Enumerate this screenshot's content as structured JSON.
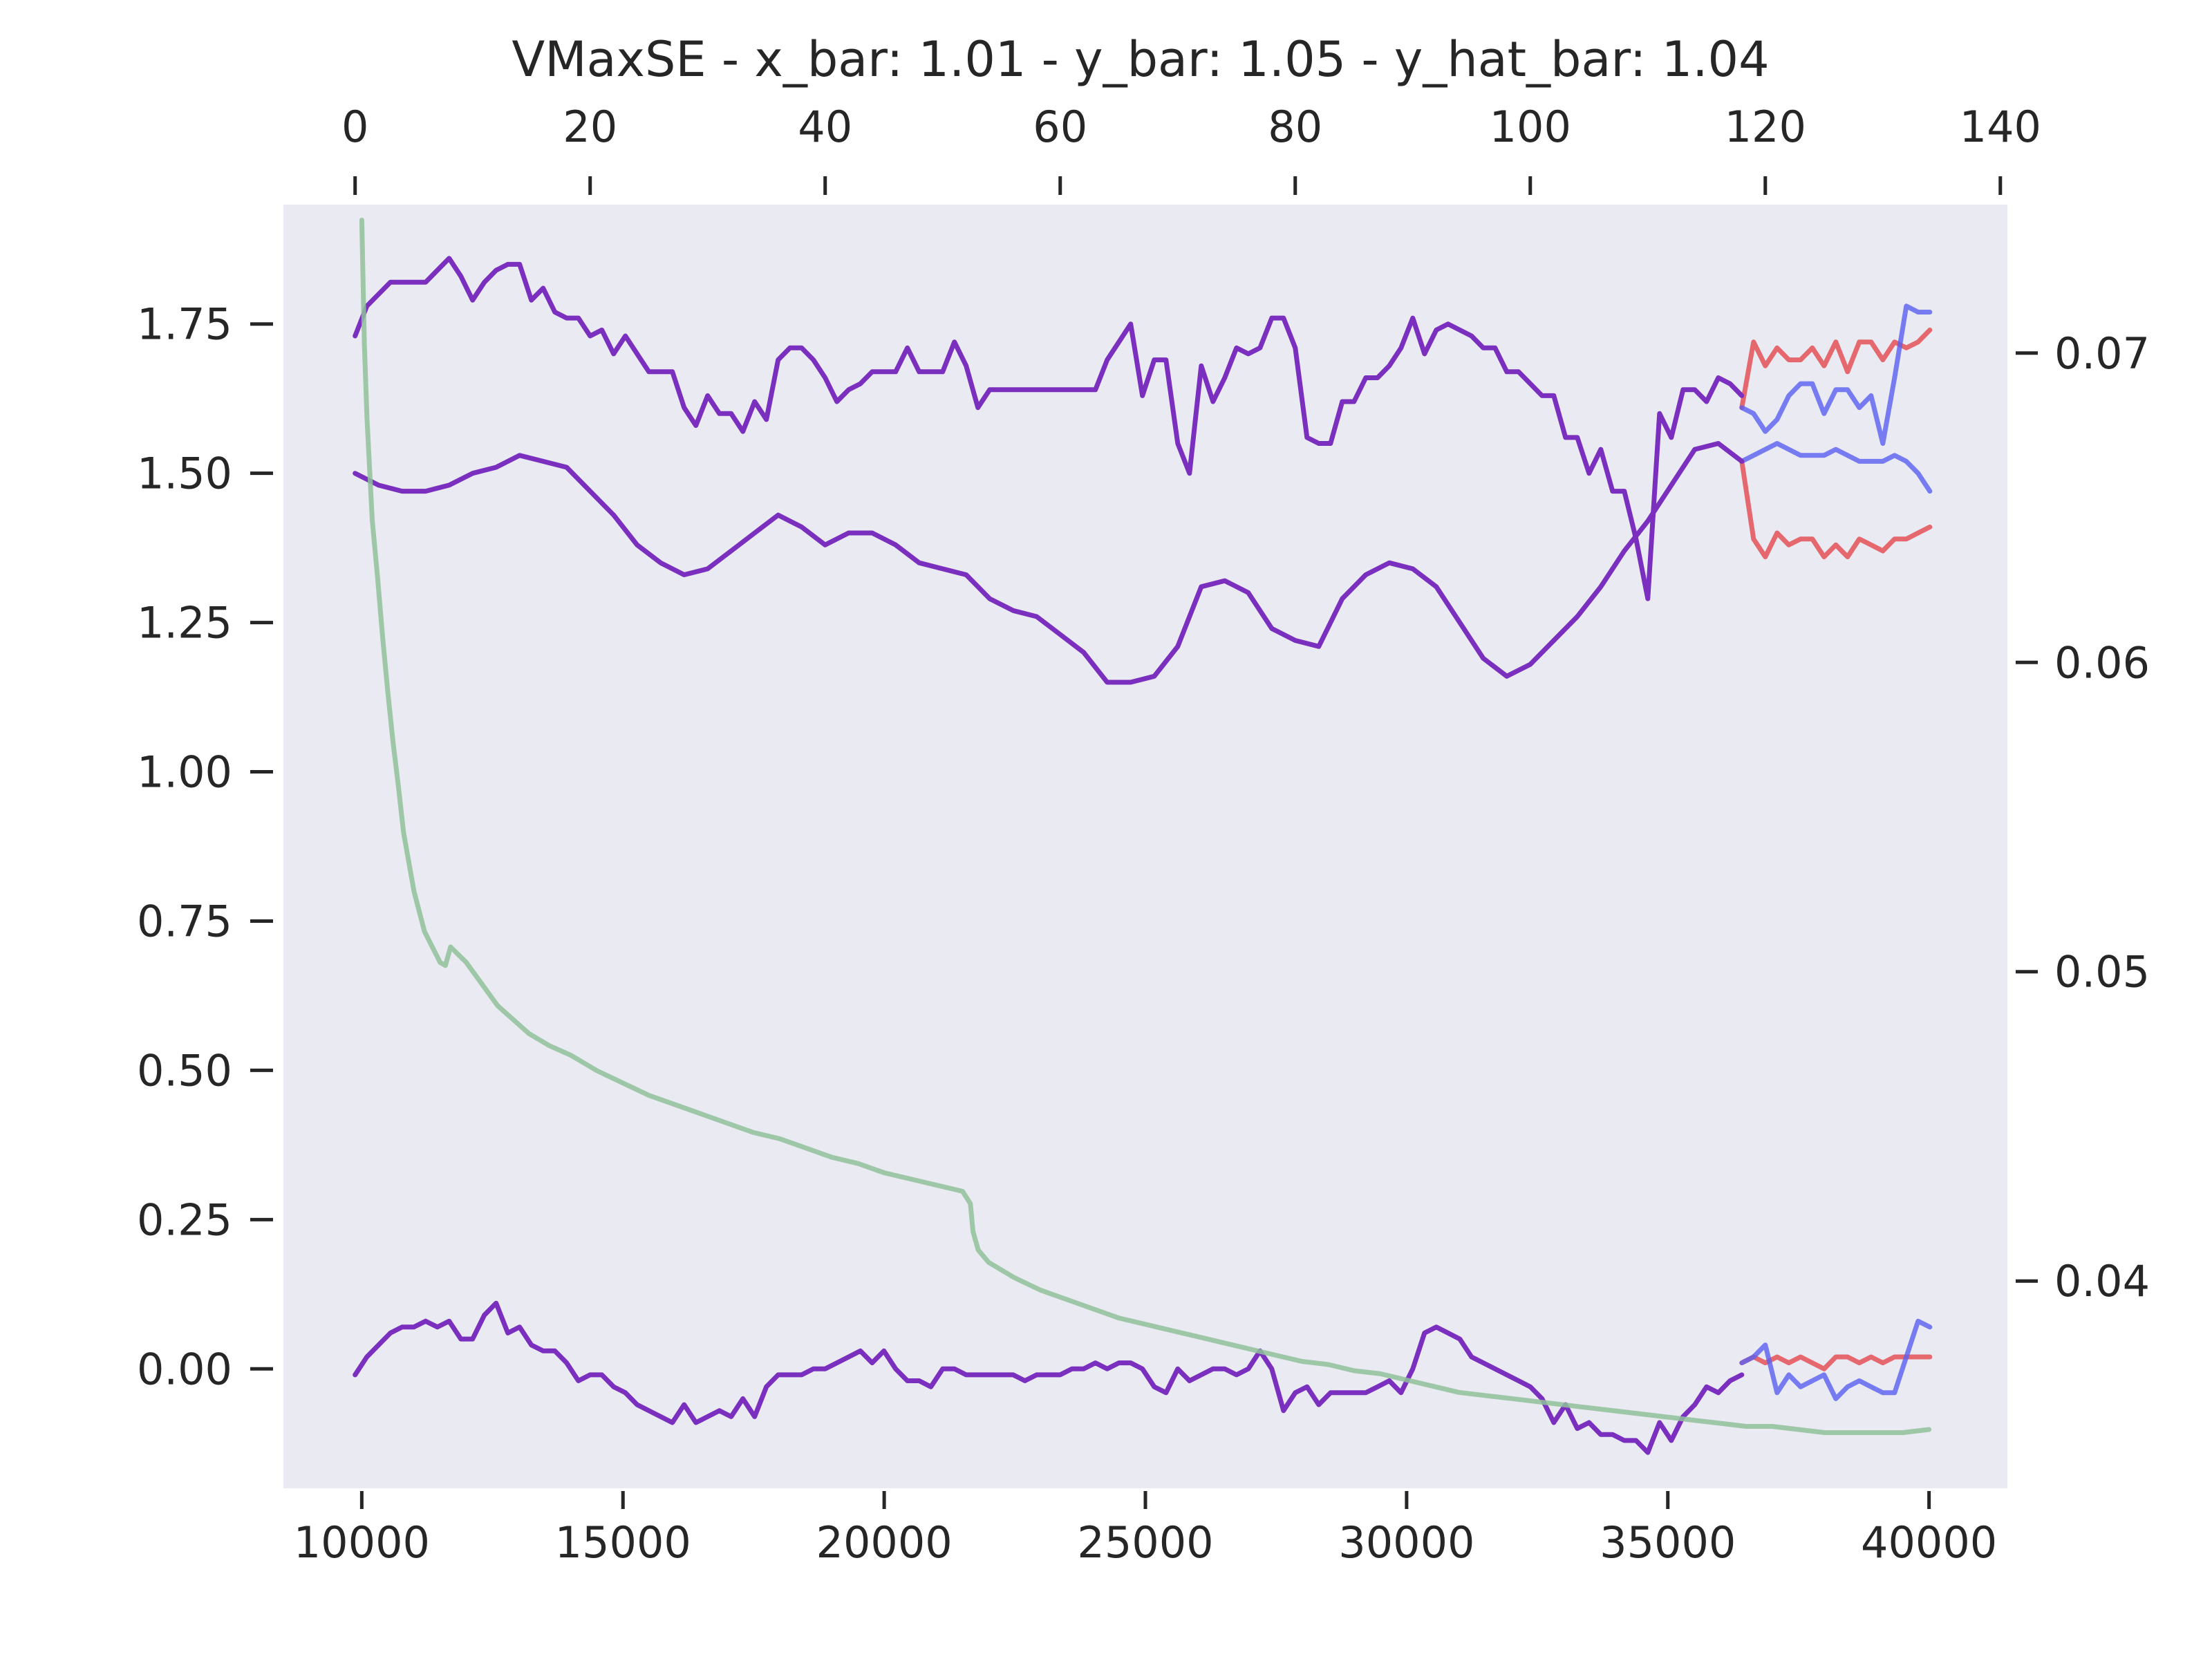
{
  "chart_data": {
    "type": "line",
    "title": "VMaxSE - x_bar: 1.01 - y_bar: 1.05 - y_hat_bar: 1.04",
    "grid": false,
    "background": "#eaeaf2",
    "axes": {
      "bottom": {
        "range": [
          8500,
          41500
        ],
        "ticks": [
          10000,
          15000,
          20000,
          25000,
          30000,
          35000,
          40000
        ]
      },
      "top": {
        "range": [
          -6.1,
          140.6
        ],
        "ticks": [
          0,
          20,
          40,
          60,
          80,
          100,
          120,
          140
        ]
      },
      "left": {
        "range": [
          -0.2,
          1.95
        ],
        "ticks": [
          0.0,
          0.25,
          0.5,
          0.75,
          1.0,
          1.25,
          1.5,
          1.75
        ],
        "tick_labels": [
          "0.00",
          "0.25",
          "0.50",
          "0.75",
          "1.00",
          "1.25",
          "1.50",
          "1.75"
        ]
      },
      "right": {
        "range": [
          0.0333,
          0.0748
        ],
        "ticks": [
          0.04,
          0.05,
          0.06,
          0.07
        ],
        "tick_labels": [
          "0.04",
          "0.05",
          "0.06",
          "0.07"
        ]
      }
    },
    "series": [
      {
        "color": "#e5474d",
        "axis": "top-left",
        "segment": "forecast",
        "x": [
          118,
          119,
          120,
          121,
          122,
          123,
          124,
          125,
          126,
          127,
          128,
          129,
          130,
          131,
          132,
          133,
          134
        ],
        "y": [
          1.61,
          1.72,
          1.68,
          1.71,
          1.69,
          1.69,
          1.71,
          1.68,
          1.72,
          1.67,
          1.72,
          1.72,
          1.69,
          1.72,
          1.71,
          1.72,
          1.74
        ]
      },
      {
        "color": "#e5474d",
        "axis": "top-left",
        "segment": "forecast",
        "x": [
          118,
          119,
          120,
          121,
          122,
          123,
          124,
          125,
          126,
          127,
          128,
          129,
          130,
          131,
          132,
          133,
          134
        ],
        "y": [
          1.52,
          1.39,
          1.36,
          1.4,
          1.38,
          1.39,
          1.39,
          1.36,
          1.38,
          1.36,
          1.39,
          1.38,
          1.37,
          1.39,
          1.39,
          1.4,
          1.41
        ]
      },
      {
        "color": "#e5474d",
        "axis": "top-left",
        "segment": "forecast",
        "x": [
          118,
          119,
          120,
          121,
          122,
          123,
          124,
          125,
          126,
          127,
          128,
          129,
          130,
          131,
          132,
          133,
          134
        ],
        "y": [
          0.01,
          0.02,
          0.01,
          0.02,
          0.01,
          0.02,
          0.01,
          0.0,
          0.02,
          0.02,
          0.01,
          0.02,
          0.01,
          0.02,
          0.02,
          0.02,
          0.02
        ]
      },
      {
        "color": "#5a5ff0",
        "axis": "top-left",
        "segment": "forecast",
        "x": [
          118,
          119,
          120,
          121,
          122,
          123,
          124,
          125,
          126,
          127,
          128,
          129,
          130,
          131,
          132,
          133,
          134
        ],
        "y": [
          1.61,
          1.6,
          1.57,
          1.59,
          1.63,
          1.65,
          1.65,
          1.6,
          1.64,
          1.64,
          1.61,
          1.63,
          1.55,
          1.66,
          1.78,
          1.77,
          1.77
        ]
      },
      {
        "color": "#5a5ff0",
        "axis": "top-left",
        "segment": "forecast",
        "x": [
          118,
          119,
          120,
          121,
          122,
          123,
          124,
          125,
          126,
          127,
          128,
          129,
          130,
          131,
          132,
          133,
          134
        ],
        "y": [
          1.52,
          1.53,
          1.54,
          1.55,
          1.54,
          1.53,
          1.53,
          1.53,
          1.54,
          1.53,
          1.52,
          1.52,
          1.52,
          1.53,
          1.52,
          1.5,
          1.47
        ]
      },
      {
        "color": "#5a5ff0",
        "axis": "top-left",
        "segment": "forecast",
        "x": [
          118,
          119,
          120,
          121,
          122,
          123,
          124,
          125,
          126,
          127,
          128,
          129,
          130,
          131,
          132,
          133,
          134
        ],
        "y": [
          0.01,
          0.02,
          0.04,
          -0.04,
          -0.01,
          -0.03,
          -0.02,
          -0.01,
          -0.05,
          -0.03,
          -0.02,
          -0.03,
          -0.04,
          -0.04,
          0.02,
          0.08,
          0.07
        ]
      },
      {
        "color": "#7b2fbf",
        "axis": "top-left",
        "segment": "history",
        "x": [
          0,
          1,
          2,
          3,
          4,
          5,
          6,
          7,
          8,
          9,
          10,
          11,
          12,
          13,
          14,
          15,
          16,
          17,
          18,
          19,
          20,
          21,
          22,
          23,
          24,
          25,
          26,
          27,
          28,
          29,
          30,
          31,
          32,
          33,
          34,
          35,
          36,
          37,
          38,
          39,
          40,
          41,
          42,
          43,
          44,
          45,
          46,
          47,
          48,
          49,
          50,
          51,
          52,
          53,
          54,
          55,
          56,
          57,
          58,
          59,
          60,
          61,
          62,
          63,
          64,
          65,
          66,
          67,
          68,
          69,
          70,
          71,
          72,
          73,
          74,
          75,
          76,
          77,
          78,
          79,
          80,
          81,
          82,
          83,
          84,
          85,
          86,
          87,
          88,
          89,
          90,
          91,
          92,
          93,
          94,
          95,
          96,
          97,
          98,
          99,
          100,
          101,
          102,
          103,
          104,
          105,
          106,
          107,
          108,
          109,
          110,
          111,
          112,
          113,
          114,
          115,
          116,
          117,
          118
        ],
        "y": [
          1.73,
          1.78,
          1.8,
          1.82,
          1.82,
          1.82,
          1.82,
          1.84,
          1.86,
          1.83,
          1.79,
          1.82,
          1.84,
          1.85,
          1.85,
          1.79,
          1.81,
          1.77,
          1.76,
          1.76,
          1.73,
          1.74,
          1.7,
          1.73,
          1.7,
          1.67,
          1.67,
          1.67,
          1.61,
          1.58,
          1.63,
          1.6,
          1.6,
          1.57,
          1.62,
          1.59,
          1.69,
          1.71,
          1.71,
          1.69,
          1.66,
          1.62,
          1.64,
          1.65,
          1.67,
          1.67,
          1.67,
          1.71,
          1.67,
          1.67,
          1.67,
          1.72,
          1.68,
          1.61,
          1.64,
          1.64,
          1.64,
          1.64,
          1.64,
          1.64,
          1.64,
          1.64,
          1.64,
          1.64,
          1.69,
          1.72,
          1.75,
          1.63,
          1.69,
          1.69,
          1.55,
          1.5,
          1.68,
          1.62,
          1.66,
          1.71,
          1.7,
          1.71,
          1.76,
          1.76,
          1.71,
          1.56,
          1.55,
          1.55,
          1.62,
          1.62,
          1.66,
          1.66,
          1.68,
          1.71,
          1.76,
          1.7,
          1.74,
          1.75,
          1.74,
          1.73,
          1.71,
          1.71,
          1.67,
          1.67,
          1.65,
          1.63,
          1.63,
          1.56,
          1.56,
          1.5,
          1.54,
          1.47,
          1.47,
          1.39,
          1.29,
          1.6,
          1.56,
          1.64,
          1.64,
          1.62,
          1.66,
          1.65,
          1.63
        ]
      },
      {
        "color": "#7b2fbf",
        "axis": "top-left",
        "segment": "history",
        "x": [
          0,
          2,
          4,
          6,
          8,
          10,
          12,
          14,
          16,
          18,
          20,
          22,
          24,
          26,
          28,
          30,
          32,
          34,
          36,
          38,
          40,
          42,
          44,
          46,
          48,
          50,
          52,
          54,
          56,
          58,
          60,
          62,
          64,
          66,
          68,
          70,
          72,
          74,
          76,
          78,
          80,
          82,
          84,
          86,
          88,
          90,
          92,
          94,
          96,
          98,
          100,
          102,
          104,
          106,
          108,
          110,
          112,
          114,
          116,
          118
        ],
        "y": [
          1.5,
          1.48,
          1.47,
          1.47,
          1.48,
          1.5,
          1.51,
          1.53,
          1.52,
          1.51,
          1.47,
          1.43,
          1.38,
          1.35,
          1.33,
          1.34,
          1.37,
          1.4,
          1.43,
          1.41,
          1.38,
          1.4,
          1.4,
          1.38,
          1.35,
          1.34,
          1.33,
          1.29,
          1.27,
          1.26,
          1.23,
          1.2,
          1.15,
          1.15,
          1.16,
          1.21,
          1.31,
          1.32,
          1.3,
          1.24,
          1.22,
          1.21,
          1.29,
          1.33,
          1.35,
          1.34,
          1.31,
          1.25,
          1.19,
          1.16,
          1.18,
          1.22,
          1.26,
          1.31,
          1.37,
          1.42,
          1.48,
          1.54,
          1.55,
          1.52
        ]
      },
      {
        "color": "#7b2fbf",
        "axis": "top-left",
        "segment": "history",
        "x": [
          0,
          1,
          2,
          3,
          4,
          5,
          6,
          7,
          8,
          9,
          10,
          11,
          12,
          13,
          14,
          15,
          16,
          17,
          18,
          19,
          20,
          21,
          22,
          23,
          24,
          25,
          26,
          27,
          28,
          29,
          30,
          31,
          32,
          33,
          34,
          35,
          36,
          37,
          38,
          39,
          40,
          41,
          42,
          43,
          44,
          45,
          46,
          47,
          48,
          49,
          50,
          51,
          52,
          53,
          54,
          55,
          56,
          57,
          58,
          59,
          60,
          61,
          62,
          63,
          64,
          65,
          66,
          67,
          68,
          69,
          70,
          71,
          72,
          73,
          74,
          75,
          76,
          77,
          78,
          79,
          80,
          81,
          82,
          83,
          84,
          85,
          86,
          87,
          88,
          89,
          90,
          91,
          92,
          93,
          94,
          95,
          96,
          97,
          98,
          99,
          100,
          101,
          102,
          103,
          104,
          105,
          106,
          107,
          108,
          109,
          110,
          111,
          112,
          113,
          114,
          115,
          116,
          117,
          118
        ],
        "y": [
          -0.01,
          0.02,
          0.04,
          0.06,
          0.07,
          0.07,
          0.08,
          0.07,
          0.08,
          0.05,
          0.05,
          0.09,
          0.11,
          0.06,
          0.07,
          0.04,
          0.03,
          0.03,
          0.01,
          -0.02,
          -0.01,
          -0.01,
          -0.03,
          -0.04,
          -0.06,
          -0.07,
          -0.08,
          -0.09,
          -0.06,
          -0.09,
          -0.08,
          -0.07,
          -0.08,
          -0.05,
          -0.08,
          -0.03,
          -0.01,
          -0.01,
          -0.01,
          0.0,
          0.0,
          0.01,
          0.02,
          0.03,
          0.01,
          0.03,
          0.0,
          -0.02,
          -0.02,
          -0.03,
          0.0,
          0.0,
          -0.01,
          -0.01,
          -0.01,
          -0.01,
          -0.01,
          -0.02,
          -0.01,
          -0.01,
          -0.01,
          0.0,
          0.0,
          0.01,
          0.0,
          0.01,
          0.01,
          0.0,
          -0.03,
          -0.04,
          0.0,
          -0.02,
          -0.01,
          0.0,
          0.0,
          -0.01,
          0.0,
          0.03,
          0.0,
          -0.07,
          -0.04,
          -0.03,
          -0.06,
          -0.04,
          -0.04,
          -0.04,
          -0.04,
          -0.03,
          -0.02,
          -0.04,
          0.0,
          0.06,
          0.07,
          0.06,
          0.05,
          0.02,
          0.01,
          0.0,
          -0.01,
          -0.02,
          -0.03,
          -0.05,
          -0.09,
          -0.06,
          -0.1,
          -0.09,
          -0.11,
          -0.11,
          -0.12,
          -0.12,
          -0.14,
          -0.09,
          -0.12,
          -0.08,
          -0.06,
          -0.03,
          -0.04,
          -0.02,
          -0.01
        ]
      },
      {
        "color": "#8fc19a",
        "axis": "bottom-right",
        "segment": "loss",
        "x": [
          10000,
          10050,
          10100,
          10200,
          10300,
          10400,
          10500,
          10600,
          10700,
          10800,
          11000,
          11200,
          11500,
          11600,
          11700,
          12000,
          12300,
          12600,
          12800,
          13200,
          13600,
          14000,
          14500,
          15000,
          15500,
          16000,
          16500,
          17000,
          17500,
          18000,
          18500,
          19000,
          19500,
          20000,
          20500,
          21000,
          21500,
          21650,
          21700,
          21800,
          22000,
          22500,
          23000,
          23500,
          24000,
          24500,
          25000,
          25500,
          26000,
          26500,
          27000,
          27500,
          28000,
          28500,
          29000,
          29500,
          30000,
          30500,
          31000,
          31500,
          32000,
          32500,
          33000,
          33500,
          34000,
          34500,
          35000,
          35500,
          36000,
          36500,
          37000,
          37500,
          38000,
          38500,
          39000,
          39500,
          40000
        ],
        "y": [
          0.0743,
          0.0703,
          0.0679,
          0.0646,
          0.0628,
          0.0608,
          0.059,
          0.0574,
          0.056,
          0.0545,
          0.0526,
          0.0513,
          0.0503,
          0.0502,
          0.0508,
          0.0503,
          0.0496,
          0.0489,
          0.0486,
          0.048,
          0.0476,
          0.0473,
          0.0468,
          0.0464,
          0.046,
          0.0457,
          0.0454,
          0.0451,
          0.0448,
          0.0446,
          0.0443,
          0.044,
          0.0438,
          0.0435,
          0.0433,
          0.0431,
          0.0429,
          0.0425,
          0.0416,
          0.041,
          0.0406,
          0.0401,
          0.0397,
          0.0394,
          0.0391,
          0.0388,
          0.0386,
          0.0384,
          0.0382,
          0.038,
          0.0378,
          0.0376,
          0.0374,
          0.0373,
          0.0371,
          0.037,
          0.0368,
          0.0366,
          0.0364,
          0.0363,
          0.0362,
          0.0361,
          0.036,
          0.0359,
          0.0358,
          0.0357,
          0.0356,
          0.0355,
          0.0354,
          0.0353,
          0.0353,
          0.0352,
          0.0351,
          0.0351,
          0.0351,
          0.0351,
          0.0352
        ]
      }
    ]
  }
}
